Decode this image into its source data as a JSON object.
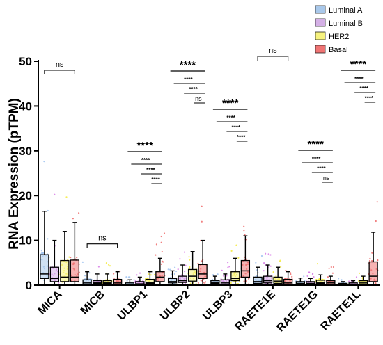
{
  "chart_data": {
    "type": "box",
    "ylabel": "RNA Expression (pTPM)",
    "ylim": [
      0,
      50
    ],
    "yticks": [
      0,
      10,
      20,
      30,
      40,
      50
    ],
    "grid": false,
    "legend_position": "top-right",
    "categories": [
      "MICA",
      "MICB",
      "ULBP1",
      "ULBP2",
      "ULBP3",
      "RAETE1E",
      "RAETE1G",
      "RAETE1L"
    ],
    "series": [
      {
        "name": "Luminal A",
        "color": "#a9c8ea",
        "point_color": "#9ec2f0"
      },
      {
        "name": "Luminal B",
        "color": "#d4b0e6",
        "point_color": "#d77ae6"
      },
      {
        "name": "HER2",
        "color": "#f6f27e",
        "point_color": "#f3ea3c"
      },
      {
        "name": "Basal",
        "color": "#f07474",
        "point_color": "#ef6a6a"
      }
    ],
    "boxes": [
      [
        [
          0,
          1.5,
          2.5,
          6.8,
          16.5
        ],
        [
          0,
          0.8,
          1.5,
          4,
          10
        ],
        [
          0,
          0.8,
          1.8,
          5.5,
          12
        ],
        [
          0,
          0.8,
          1.8,
          5.6,
          14
        ]
      ],
      [
        [
          0,
          0.3,
          0.6,
          1.2,
          3
        ],
        [
          0,
          0.3,
          0.5,
          1,
          2.5
        ],
        [
          0,
          0.3,
          0.5,
          1,
          2.5
        ],
        [
          0,
          0.3,
          0.6,
          1.3,
          3
        ]
      ],
      [
        [
          0,
          0.1,
          0.2,
          0.5,
          1.2
        ],
        [
          0,
          0.2,
          0.3,
          0.8,
          1.8
        ],
        [
          0,
          0.3,
          0.5,
          1.3,
          3
        ],
        [
          0,
          0.8,
          1.8,
          3,
          6
        ]
      ],
      [
        [
          0,
          0.5,
          0.8,
          1.5,
          3.2
        ],
        [
          0,
          0.6,
          1,
          2,
          4.5
        ],
        [
          0,
          0.9,
          2,
          3.5,
          7.5
        ],
        [
          0,
          1.5,
          2.5,
          4.6,
          10
        ]
      ],
      [
        [
          0,
          0.3,
          0.5,
          1,
          2
        ],
        [
          0,
          0.3,
          0.6,
          1.2,
          2.5
        ],
        [
          0,
          1,
          1.5,
          3,
          6
        ],
        [
          0,
          1.8,
          3.2,
          5.5,
          11
        ]
      ],
      [
        [
          0,
          0.4,
          0.8,
          1.8,
          4
        ],
        [
          0,
          0.5,
          1,
          2,
          4.5
        ],
        [
          0,
          0.4,
          0.9,
          1.8,
          4
        ],
        [
          0,
          0.3,
          0.6,
          1.3,
          3
        ]
      ],
      [
        [
          0,
          0.2,
          0.4,
          0.8,
          1.6
        ],
        [
          0,
          0.2,
          0.4,
          0.8,
          1.5
        ],
        [
          0,
          0.3,
          0.5,
          1.1,
          2.3
        ],
        [
          0,
          0.2,
          0.5,
          1,
          2
        ]
      ],
      [
        [
          0,
          0.1,
          0.2,
          0.4,
          0.8
        ],
        [
          0,
          0.1,
          0.2,
          0.5,
          1
        ],
        [
          0,
          0.3,
          0.6,
          1,
          2
        ],
        [
          0,
          0.8,
          2,
          5.2,
          11.8
        ]
      ]
    ],
    "significance": [
      {
        "category": 0,
        "labels": [
          "ns"
        ]
      },
      {
        "category": 1,
        "labels": [
          "ns"
        ]
      },
      {
        "category": 2,
        "labels": [
          "****",
          "****",
          "****",
          "****"
        ]
      },
      {
        "category": 3,
        "labels": [
          "****",
          "****",
          "****",
          "ns"
        ]
      },
      {
        "category": 4,
        "labels": [
          "****",
          "****",
          "****",
          "****"
        ]
      },
      {
        "category": 5,
        "labels": [
          "ns"
        ]
      },
      {
        "category": 6,
        "labels": [
          "****",
          "****",
          "****",
          "ns"
        ]
      },
      {
        "category": 7,
        "labels": [
          "****",
          "****",
          "****",
          "****"
        ]
      }
    ]
  }
}
